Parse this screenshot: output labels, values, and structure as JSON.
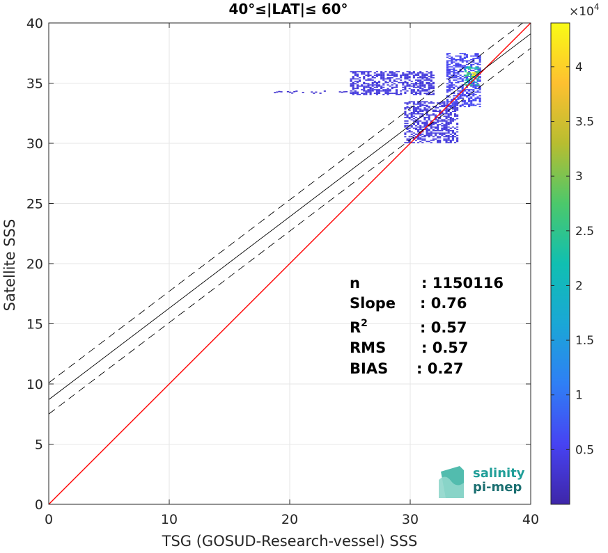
{
  "chart_data": {
    "type": "heatmap",
    "title": "40°≤|LAT|≤ 60°",
    "xlabel": "TSG (GOSUD-Research-vessel) SSS",
    "ylabel": "Satellite SSS",
    "xlim": [
      0,
      40
    ],
    "ylim": [
      0,
      40
    ],
    "xticks": [
      "0",
      "10",
      "20",
      "30",
      "40"
    ],
    "yticks": [
      "0",
      "5",
      "10",
      "15",
      "20",
      "25",
      "30",
      "35",
      "40"
    ],
    "grid": true,
    "colorbar": {
      "range": [
        0,
        44000
      ],
      "multiplier_label": "×10",
      "multiplier_exponent": "4",
      "ticks": [
        "0.5",
        "1",
        "1.5",
        "2",
        "2.5",
        "3",
        "3.5",
        "4"
      ],
      "tick_values": [
        0.5,
        1,
        1.5,
        2,
        2.5,
        3,
        3.5,
        4
      ],
      "colormap": [
        "#3e26a8",
        "#4743f2",
        "#2f7ff5",
        "#1aa7d6",
        "#10bfb1",
        "#4cc86b",
        "#b8bd30",
        "#fec030",
        "#f9fb15"
      ]
    },
    "lines": [
      {
        "kind": "one-to-one",
        "color": "#ff0000",
        "points": [
          [
            0,
            0
          ],
          [
            40,
            40
          ]
        ]
      },
      {
        "kind": "regression",
        "color": "#000000",
        "points": [
          [
            0,
            8.7
          ],
          [
            40,
            39.1
          ]
        ]
      },
      {
        "kind": "regression-upper",
        "color": "#000000",
        "dashed": true,
        "points": [
          [
            0,
            10.1
          ],
          [
            40,
            40.5
          ]
        ]
      },
      {
        "kind": "regression-lower",
        "color": "#000000",
        "dashed": true,
        "points": [
          [
            0,
            7.5
          ],
          [
            40,
            37.9
          ]
        ]
      }
    ],
    "density_regions": [
      {
        "x": [
          18.5,
          25.5
        ],
        "y": [
          34.2,
          34.2
        ],
        "level": 0.02
      },
      {
        "x": [
          25.0,
          32.0
        ],
        "y": [
          34.0,
          36.0
        ],
        "level": 0.04
      },
      {
        "x": [
          29.5,
          34.0
        ],
        "y": [
          30.0,
          33.5
        ],
        "level": 0.04
      },
      {
        "x": [
          33.0,
          35.8
        ],
        "y": [
          33.0,
          37.5
        ],
        "level": 0.08
      },
      {
        "x": [
          34.5,
          35.8
        ],
        "y": [
          34.8,
          36.4
        ],
        "level": 0.5
      },
      {
        "x": [
          35.1,
          35.5
        ],
        "y": [
          35.4,
          35.9
        ],
        "level": 1.0
      }
    ],
    "stats": [
      {
        "label": "n",
        "sep": ":",
        "value": "1150116"
      },
      {
        "label": "Slope",
        "sep": ":",
        "value": "0.76"
      },
      {
        "label": "R",
        "sup": "2",
        "sep": ":",
        "value": "0.57"
      },
      {
        "label": "RMS",
        "sep": ":",
        "value": "0.57"
      },
      {
        "label": "BIAS",
        "sep": ":",
        "value": "0.27"
      }
    ]
  },
  "logo": {
    "line1": "salinity",
    "line2": "pi-mep"
  }
}
